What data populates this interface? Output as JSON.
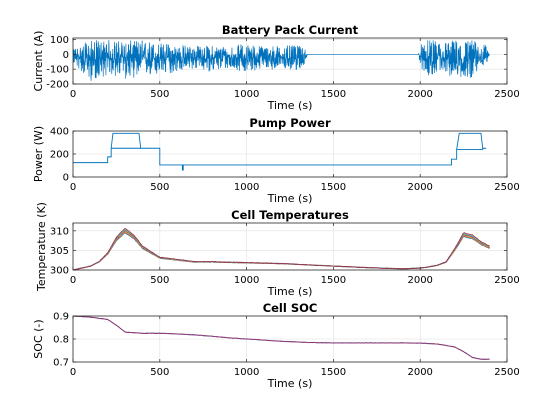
{
  "chart_data": [
    {
      "type": "line",
      "title": "Battery Pack Current",
      "xlabel": "Time (s)",
      "ylabel": "Current (A)",
      "xlim": [
        0,
        2500
      ],
      "ylim": [
        -200,
        110
      ],
      "xticks": [
        0,
        500,
        1000,
        1500,
        2000,
        2500
      ],
      "yticks": [
        -200,
        -100,
        0,
        100
      ],
      "grid": true,
      "series": [
        {
          "color": "#0072BD",
          "style": "noisy",
          "x": [
            0,
            100,
            200,
            300,
            400,
            500,
            600,
            700,
            800,
            900,
            1000,
            1100,
            1200,
            1300,
            1340,
            1350,
            1500,
            1700,
            1900,
            1990,
            2000,
            2050,
            2100,
            2200,
            2300,
            2380,
            2400
          ],
          "y": [
            -10,
            -35,
            -30,
            -20,
            -30,
            -25,
            -25,
            -20,
            -25,
            -20,
            -25,
            -20,
            -25,
            -20,
            -15,
            0,
            0,
            0,
            0,
            0,
            -20,
            -35,
            -30,
            -40,
            -30,
            -10,
            0
          ],
          "min": [
            -60,
            -185,
            -140,
            -170,
            -150,
            -150,
            -120,
            -100,
            -120,
            -100,
            -120,
            -100,
            -110,
            -110,
            -60,
            0,
            0,
            0,
            0,
            0,
            -90,
            -150,
            -120,
            -160,
            -160,
            -70,
            0
          ],
          "max": [
            40,
            95,
            100,
            90,
            100,
            80,
            70,
            60,
            60,
            60,
            70,
            60,
            60,
            60,
            40,
            0,
            0,
            0,
            0,
            0,
            70,
            100,
            90,
            100,
            100,
            60,
            0
          ]
        }
      ]
    },
    {
      "type": "line",
      "title": "Pump Power",
      "xlabel": "Time (s)",
      "ylabel": "Power (W)",
      "xlim": [
        0,
        2500
      ],
      "ylim": [
        0,
        400
      ],
      "xticks": [
        0,
        500,
        1000,
        1500,
        2000,
        2500
      ],
      "yticks": [
        0,
        200,
        400
      ],
      "grid": true,
      "series": [
        {
          "color": "#0072BD",
          "style": "step",
          "x": [
            0,
            200,
            200,
            220,
            220,
            390,
            390,
            500,
            500,
            630,
            630,
            635,
            635,
            2180,
            2180,
            2210,
            2210,
            2360,
            2360,
            2380
          ],
          "y": [
            125,
            125,
            175,
            175,
            250,
            250,
            250,
            250,
            105,
            105,
            60,
            60,
            105,
            105,
            155,
            155,
            240,
            240,
            250,
            250
          ],
          "peaks": [
            {
              "x": [
                220,
                230,
                380,
                390
              ],
              "y": [
                250,
                380,
                380,
                250
              ]
            },
            {
              "x": [
                2210,
                2225,
                2350,
                2360
              ],
              "y": [
                240,
                380,
                380,
                250
              ]
            }
          ]
        }
      ]
    },
    {
      "type": "line",
      "title": "Cell Temperatures",
      "xlabel": "Time (s)",
      "ylabel": "Temperature (K)",
      "xlim": [
        0,
        2500
      ],
      "ylim": [
        300,
        312
      ],
      "xticks": [
        0,
        500,
        1000,
        1500,
        2000,
        2500
      ],
      "yticks": [
        300,
        305,
        310
      ],
      "grid": true,
      "band": [
        0.0,
        1.1
      ],
      "series": [
        {
          "colors": [
            "#0072BD",
            "#D95319",
            "#EDB120",
            "#7E2F8E",
            "#77AC30",
            "#4DBEEE",
            "#A2142F"
          ],
          "x": [
            0,
            100,
            150,
            200,
            250,
            300,
            350,
            400,
            500,
            600,
            700,
            800,
            1000,
            1200,
            1350,
            1500,
            1700,
            1900,
            2000,
            2050,
            2100,
            2150,
            2200,
            2250,
            2300,
            2350,
            2400
          ],
          "y": [
            300,
            301,
            302,
            304,
            307.5,
            309.5,
            308,
            305.5,
            303,
            302.5,
            302,
            302,
            301.8,
            301.6,
            301.3,
            301,
            300.6,
            300.3,
            300.5,
            300.8,
            301.2,
            302,
            305,
            308.5,
            308,
            306.5,
            305.5
          ]
        }
      ]
    },
    {
      "type": "line",
      "title": "Cell SOC",
      "xlabel": "Time (s)",
      "ylabel": "SOC (-)",
      "xlim": [
        0,
        2500
      ],
      "ylim": [
        0.7,
        0.9
      ],
      "xticks": [
        0,
        500,
        1000,
        1500,
        2000,
        2500
      ],
      "yticks": [
        0.7,
        0.8,
        0.9
      ],
      "grid": true,
      "series": [
        {
          "colors": [
            "#0072BD",
            "#D95319",
            "#7E2F8E"
          ],
          "x": [
            0,
            100,
            200,
            250,
            300,
            400,
            500,
            600,
            700,
            800,
            900,
            1000,
            1100,
            1200,
            1350,
            1500,
            1700,
            1900,
            2000,
            2100,
            2150,
            2200,
            2250,
            2300,
            2350,
            2400
          ],
          "y": [
            0.9,
            0.895,
            0.885,
            0.86,
            0.83,
            0.825,
            0.825,
            0.822,
            0.818,
            0.812,
            0.805,
            0.8,
            0.795,
            0.79,
            0.785,
            0.783,
            0.783,
            0.783,
            0.782,
            0.778,
            0.772,
            0.765,
            0.745,
            0.72,
            0.712,
            0.712
          ]
        }
      ]
    }
  ]
}
